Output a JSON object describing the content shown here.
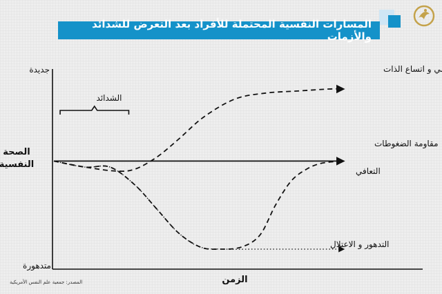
{
  "header": {
    "title": "المسارات النفسية المحتملة للأفراد بعد التعرض للشدائد والأزمات"
  },
  "source": "المصدر: جمعية علم النفس الأمريكية",
  "colors": {
    "accent": "#1592c9",
    "accent_light": "#cfe6f5",
    "line": "#111111",
    "background": "#eeeeee"
  },
  "icons": {
    "logo": "al-jazeera-logo-icon"
  },
  "chart_data": {
    "type": "line",
    "title": "المسارات النفسية المحتملة للأفراد بعد التعرض للشدائد والأزمات",
    "xlabel": "الزمن",
    "ylabel": "الصحة النفسية",
    "y_top_label": "جديدة",
    "y_bottom_label": "متدهورة",
    "xlim": [
      0,
      100
    ],
    "ylim": [
      0,
      100
    ],
    "annotation": {
      "label": "الشدائد",
      "x_start": 2,
      "x_end": 24
    },
    "series": [
      {
        "name": "النماء النفسي و اتساع الذات",
        "style": "dashed",
        "arrow": true,
        "x": [
          0,
          10,
          20,
          26,
          33,
          40,
          48,
          58,
          68,
          78,
          88,
          93
        ],
        "y": [
          54,
          51,
          49,
          50,
          56,
          65,
          76,
          85,
          88,
          89,
          90,
          90
        ]
      },
      {
        "name": "مقاومة الضغوطات",
        "style": "solid",
        "arrow": true,
        "x": [
          0,
          93
        ],
        "y": [
          54,
          54
        ]
      },
      {
        "name": "التعافي",
        "style": "dashed",
        "arrow": false,
        "x": [
          0,
          10,
          18,
          26,
          33,
          40,
          47,
          53,
          60,
          66,
          71,
          76,
          81,
          86,
          93
        ],
        "y": [
          54,
          51,
          51,
          42,
          30,
          18,
          11,
          10,
          11,
          17,
          32,
          44,
          50,
          53,
          54
        ]
      },
      {
        "name": "التدهور و الاعتلال",
        "style": "dotted",
        "arrow": true,
        "x": [
          0,
          10,
          18,
          26,
          33,
          40,
          47,
          55,
          65,
          75,
          85,
          93
        ],
        "y": [
          54,
          51,
          51,
          42,
          30,
          18,
          11,
          10,
          10,
          10,
          10,
          10
        ]
      }
    ]
  }
}
